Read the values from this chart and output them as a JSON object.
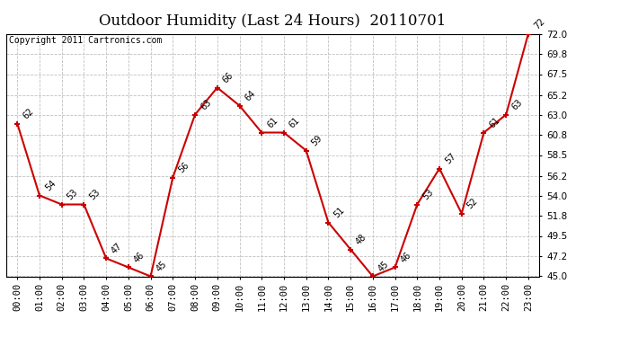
{
  "title": "Outdoor Humidity (Last 24 Hours)  20110701",
  "copyright": "Copyright 2011 Cartronics.com",
  "hours": [
    "00:00",
    "01:00",
    "02:00",
    "03:00",
    "04:00",
    "05:00",
    "06:00",
    "07:00",
    "08:00",
    "09:00",
    "10:00",
    "11:00",
    "12:00",
    "13:00",
    "14:00",
    "15:00",
    "16:00",
    "17:00",
    "18:00",
    "19:00",
    "20:00",
    "21:00",
    "22:00",
    "23:00"
  ],
  "values": [
    62,
    54,
    53,
    53,
    47,
    46,
    45,
    56,
    63,
    66,
    64,
    61,
    61,
    59,
    51,
    48,
    45,
    46,
    53,
    57,
    52,
    61,
    63,
    72
  ],
  "line_color": "#cc0000",
  "marker_color": "#cc0000",
  "bg_color": "#ffffff",
  "plot_bg_color": "#ffffff",
  "grid_color": "#c0c0c0",
  "title_fontsize": 12,
  "copyright_fontsize": 7,
  "label_fontsize": 7,
  "tick_fontsize": 7.5,
  "ylim_min": 45.0,
  "ylim_max": 72.0,
  "yticks": [
    45.0,
    47.2,
    49.5,
    51.8,
    54.0,
    56.2,
    58.5,
    60.8,
    63.0,
    65.2,
    67.5,
    69.8,
    72.0
  ]
}
